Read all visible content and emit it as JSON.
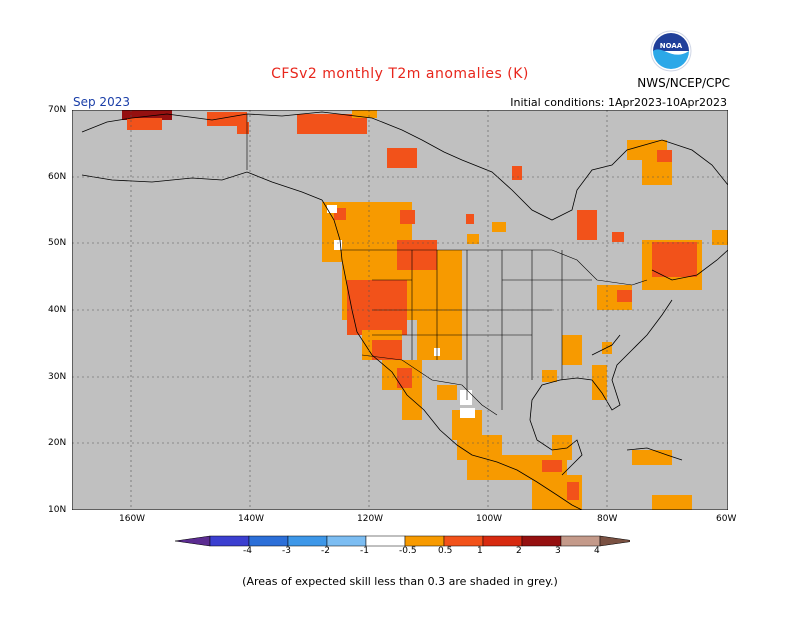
{
  "title": "CFSv2 monthly T2m anomalies (K)",
  "target_month": "Sep 2023",
  "agency": "NWS/NCEP/CPC",
  "initial_conditions": "Initial conditions: 1Apr2023-10Apr2023",
  "logo_text": "NOAA",
  "footnote": "(Areas of expected skill less than 0.3 are shaded in grey.)",
  "lat_labels": [
    "70N",
    "60N",
    "50N",
    "40N",
    "30N",
    "20N",
    "10N"
  ],
  "lon_labels": [
    "160W",
    "140W",
    "120W",
    "100W",
    "80W",
    "60W"
  ],
  "colorbar": {
    "labels": [
      "-4",
      "-3",
      "-2",
      "-1",
      "-0.5",
      "0.5",
      "1",
      "2",
      "3",
      "4"
    ],
    "colors": [
      "#5b2c91",
      "#3b3fd0",
      "#2c6fd8",
      "#3d97e8",
      "#7cbdf2",
      "#ffffff",
      "#f79a00",
      "#f2521a",
      "#d72a10",
      "#951010",
      "#c49a8a",
      "#7a5142"
    ]
  },
  "colors": {
    "skill_grey": "#c0c0c0",
    "ocean_grey": "#c0c0c0",
    "title_red": "#e8261c",
    "month_blue": "#1a3ea8"
  }
}
